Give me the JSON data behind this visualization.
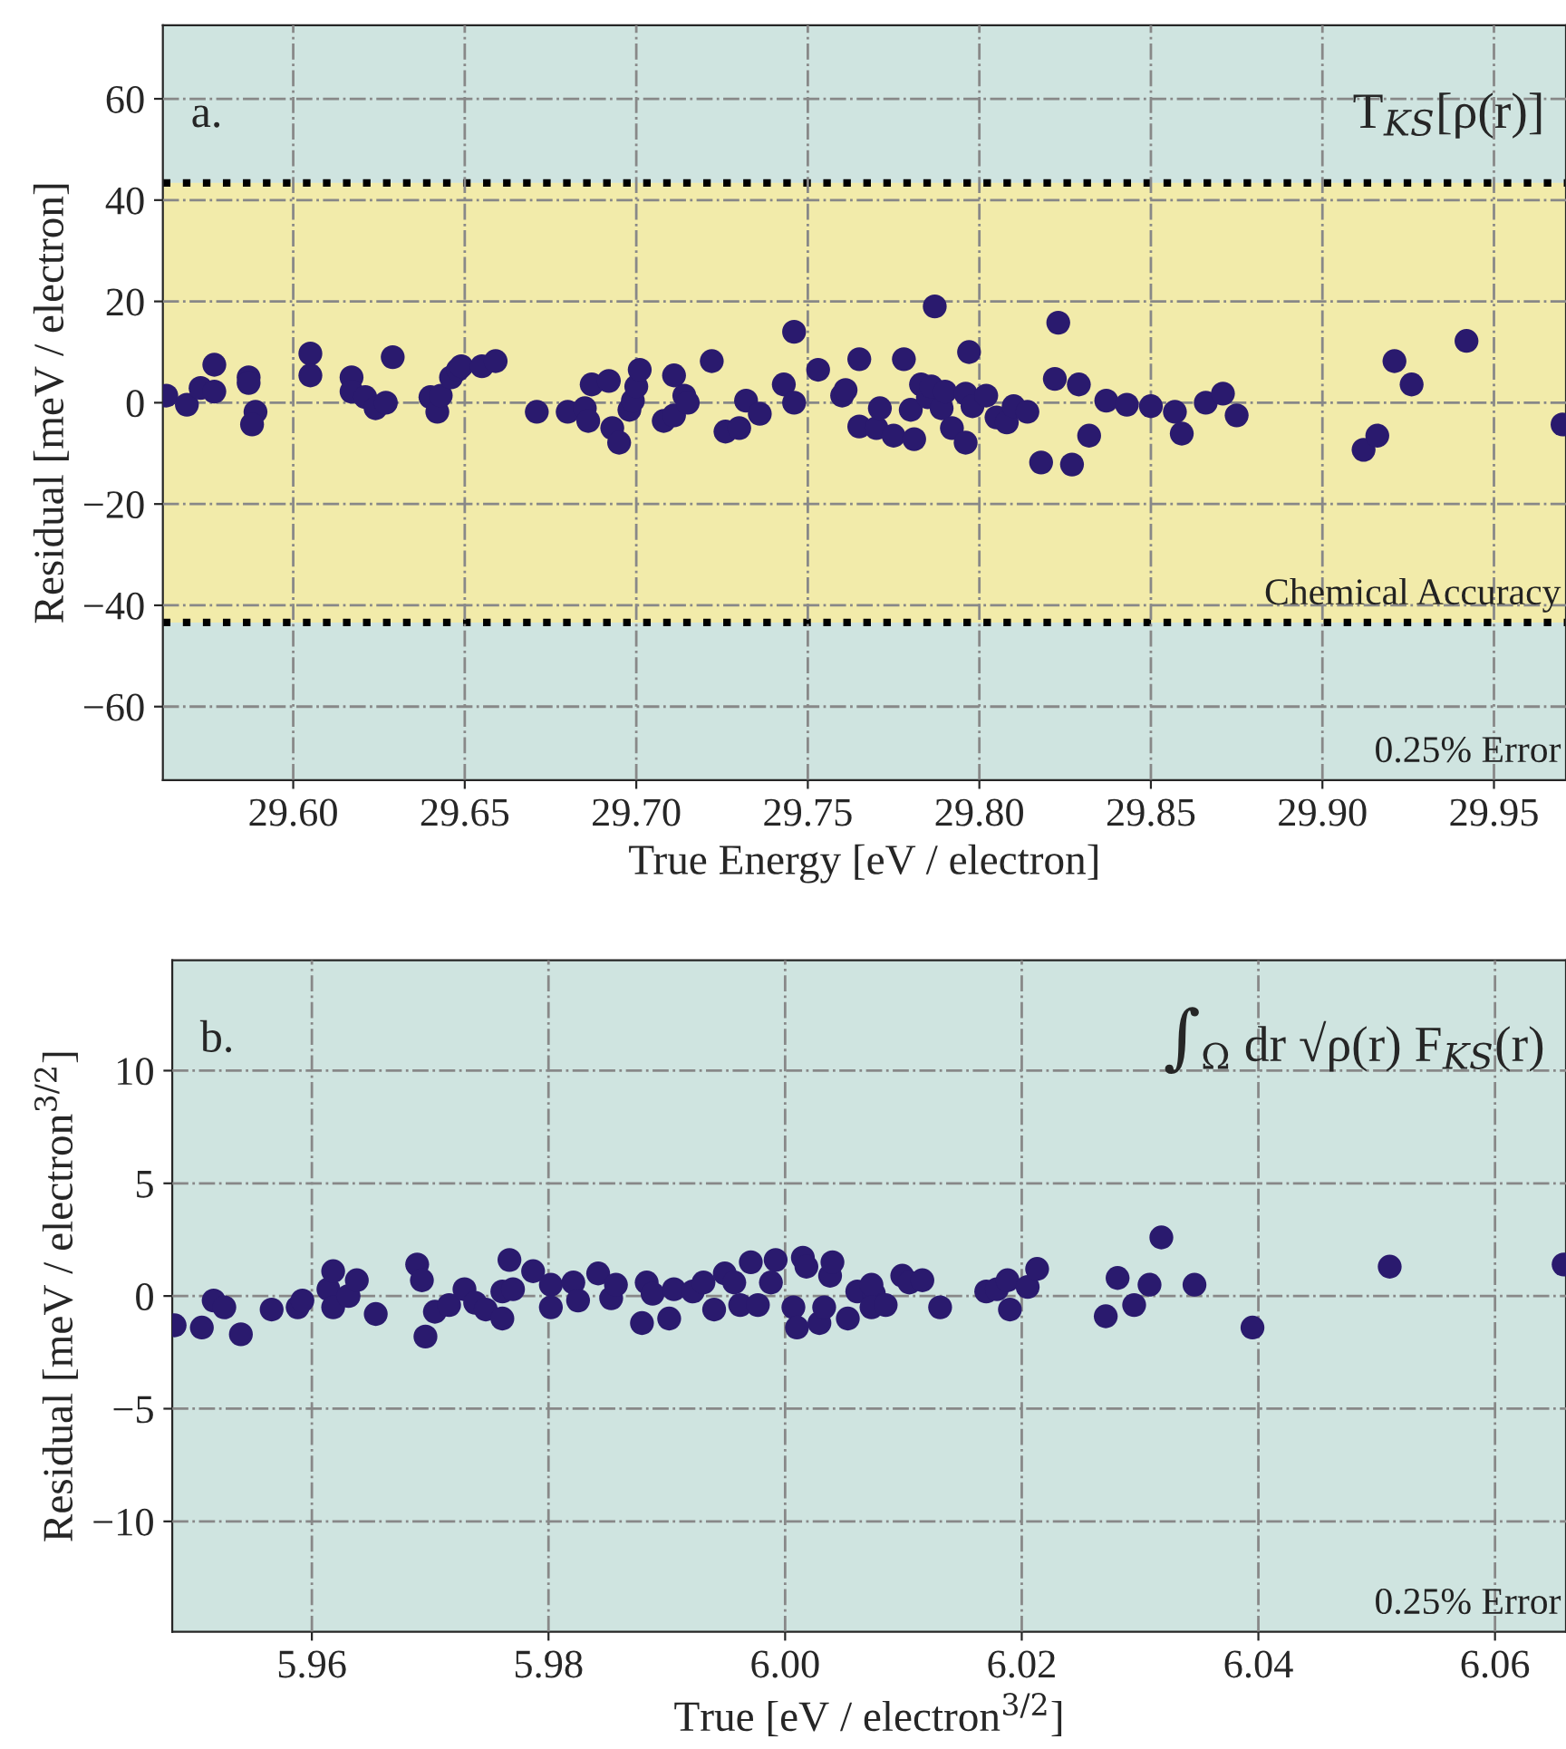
{
  "chart_data": [
    {
      "type": "scatter",
      "xlabel": "True Energy [eV / electron]",
      "ylabel": "Residual [meV / electron]",
      "annotations": [
        "a.",
        "T$_{KS}$[ρ(r)]"
      ],
      "xlim": [
        29.562,
        29.971
      ],
      "ylim": [
        -74.5,
        74.5
      ],
      "xticks": [
        {
          "value": 29.6,
          "label": "29.60"
        },
        {
          "value": 29.65,
          "label": "29.65"
        },
        {
          "value": 29.7,
          "label": "29.70"
        },
        {
          "value": 29.75,
          "label": "29.75"
        },
        {
          "value": 29.8,
          "label": "29.80"
        },
        {
          "value": 29.85,
          "label": "29.85"
        },
        {
          "value": 29.9,
          "label": "29.90"
        },
        {
          "value": 29.95,
          "label": "29.95"
        }
      ],
      "yticks": [
        {
          "value": -60,
          "label": "−60"
        },
        {
          "value": -40,
          "label": "−40"
        },
        {
          "value": -20,
          "label": "−20"
        },
        0,
        20,
        40,
        60
      ],
      "grid": true,
      "marker": "circle",
      "bands": [
        {
          "axis": "y",
          "from": -74.5,
          "to": 74.5,
          "label": "0.25% Error",
          "color": "#cfe4e0"
        },
        {
          "axis": "y",
          "from": -43.4,
          "to": 43.4,
          "label": "Chemical Accuracy",
          "color": "#f2ebaa"
        }
      ],
      "ref_lines": [
        {
          "axis": "y",
          "value": 43.4,
          "color": "#000000",
          "line_style": "dotted"
        },
        {
          "axis": "y",
          "value": -43.4,
          "color": "#000000",
          "line_style": "dotted"
        }
      ],
      "series": [
        {
          "color": "#2a1a6e",
          "x": [
            29.563,
            29.569,
            29.573,
            29.577,
            29.577,
            29.587,
            29.587,
            29.589,
            29.588,
            29.605,
            29.605,
            29.617,
            29.617,
            29.621,
            29.624,
            29.627,
            29.629,
            29.64,
            29.642,
            29.643,
            29.646,
            29.648,
            29.649,
            29.655,
            29.659,
            29.671,
            29.68,
            29.685,
            29.686,
            29.687,
            29.692,
            29.693,
            29.695,
            29.698,
            29.699,
            29.7,
            29.701,
            29.708,
            29.711,
            29.711,
            29.714,
            29.715,
            29.722,
            29.726,
            29.73,
            29.732,
            29.736,
            29.743,
            29.746,
            29.746,
            29.753,
            29.76,
            29.761,
            29.765,
            29.765,
            29.77,
            29.771,
            29.775,
            29.778,
            29.78,
            29.781,
            29.783,
            29.785,
            29.786,
            29.787,
            29.789,
            29.79,
            29.792,
            29.796,
            29.796,
            29.797,
            29.798,
            29.802,
            29.805,
            29.808,
            29.81,
            29.814,
            29.818,
            29.822,
            29.823,
            29.827,
            29.829,
            29.832,
            29.837,
            29.843,
            29.85,
            29.857,
            29.859,
            29.866,
            29.871,
            29.875,
            29.912,
            29.916,
            29.921,
            29.926,
            29.942,
            29.97
          ],
          "values": [
            1.4,
            -0.4,
            2.9,
            2.2,
            7.5,
            5.0,
            3.9,
            -1.8,
            -4.3,
            9.7,
            5.4,
            5.0,
            2.2,
            1.1,
            -1.1,
            0,
            9.0,
            1.1,
            -1.8,
            1.4,
            5.0,
            6.5,
            7.2,
            7.2,
            8.2,
            -1.8,
            -1.8,
            -1.1,
            -3.6,
            3.6,
            4.3,
            -5.0,
            -7.9,
            -1.4,
            0.4,
            3.2,
            6.5,
            -3.6,
            -2.5,
            5.4,
            1.4,
            0,
            8.2,
            -5.7,
            -5.0,
            0.4,
            -2.2,
            3.6,
            14.0,
            0,
            6.5,
            1.4,
            2.5,
            8.6,
            -4.7,
            -5.0,
            -1.1,
            -6.5,
            8.6,
            -1.4,
            -7.2,
            3.6,
            1.1,
            3.2,
            19.0,
            -1.1,
            2.2,
            -5.0,
            -7.9,
            1.8,
            10.0,
            -0.7,
            1.4,
            -2.9,
            -3.9,
            -0.7,
            -1.8,
            -11.8,
            4.7,
            15.8,
            -12.2,
            3.6,
            -6.5,
            0.4,
            -0.4,
            -0.7,
            -1.8,
            -6.1,
            0,
            1.8,
            -2.5,
            -9.3,
            -6.5,
            8.2,
            3.6,
            12.2,
            -4.3
          ]
        }
      ]
    },
    {
      "type": "scatter",
      "xlabel": "True [eV / electron$^{3/2}$]",
      "ylabel": "Residual [meV / electron$^{3/2}$]",
      "annotations": [
        "b.",
        "∫$_{Ω}$ dr √ρ(r) F$_{KS}$(r)"
      ],
      "xlim": [
        5.9482,
        6.066
      ],
      "ylim": [
        -14.9,
        14.9
      ],
      "xticks": [
        {
          "value": 5.96,
          "label": "5.96"
        },
        {
          "value": 5.98,
          "label": "5.98"
        },
        {
          "value": 6.0,
          "label": "6.00"
        },
        {
          "value": 6.02,
          "label": "6.02"
        },
        {
          "value": 6.04,
          "label": "6.04"
        },
        {
          "value": 6.06,
          "label": "6.06"
        }
      ],
      "yticks": [
        {
          "value": -10,
          "label": "−10"
        },
        {
          "value": -5,
          "label": "−5"
        },
        0,
        5,
        10
      ],
      "grid": true,
      "marker": "circle",
      "bands": [
        {
          "axis": "y",
          "from": -14.9,
          "to": 14.9,
          "label": "0.25% Error",
          "color": "#cfe4e0"
        }
      ],
      "series": [
        {
          "color": "#2a1a6e",
          "x": [
            5.9484,
            5.9507,
            5.9517,
            5.9526,
            5.954,
            5.9566,
            5.9588,
            5.9592,
            5.9614,
            5.9618,
            5.9618,
            5.9631,
            5.9638,
            5.9654,
            5.9689,
            5.9693,
            5.9696,
            5.9704,
            5.9716,
            5.9729,
            5.9738,
            5.9747,
            5.9761,
            5.9761,
            5.9767,
            5.977,
            5.9787,
            5.9802,
            5.9802,
            5.9821,
            5.9825,
            5.9842,
            5.9853,
            5.9857,
            5.9879,
            5.9883,
            5.9888,
            5.9902,
            5.9906,
            5.9922,
            5.9931,
            5.994,
            5.9949,
            5.9957,
            5.9962,
            5.9971,
            5.9977,
            5.9988,
            5.9992,
            6.0007,
            6.001,
            6.0015,
            6.0018,
            6.0029,
            6.0038,
            6.004,
            6.0033,
            6.0053,
            6.0061,
            6.0075,
            6.0073,
            6.0073,
            6.0085,
            6.0099,
            6.0105,
            6.0116,
            6.0131,
            6.017,
            6.0179,
            6.0188,
            6.019,
            6.0205,
            6.0213,
            6.0271,
            6.0281,
            6.0295,
            6.0308,
            6.0318,
            6.0346,
            6.0395,
            6.0511,
            6.0658
          ],
          "values": [
            -1.3,
            -1.4,
            -0.2,
            -0.5,
            -1.7,
            -0.6,
            -0.5,
            -0.2,
            0.3,
            1.1,
            -0.5,
            0,
            0.7,
            -0.8,
            1.4,
            0.7,
            -1.8,
            -0.7,
            -0.4,
            0.3,
            -0.3,
            -0.6,
            -1.0,
            0.2,
            1.6,
            0.3,
            1.1,
            0.5,
            -0.5,
            0.6,
            -0.2,
            1.0,
            -0.1,
            0.5,
            -1.2,
            0.6,
            0.1,
            -1.0,
            0.3,
            0.2,
            0.6,
            -0.6,
            1.0,
            0.6,
            -0.4,
            1.5,
            -0.4,
            0.6,
            1.6,
            -0.5,
            -1.4,
            1.7,
            1.3,
            -1.2,
            0.9,
            1.5,
            -0.5,
            -1.0,
            0.2,
            0.1,
            0.5,
            -0.5,
            -0.4,
            0.9,
            0.6,
            0.7,
            -0.5,
            0.2,
            0.3,
            0.7,
            -0.6,
            0.4,
            1.2,
            -0.9,
            0.8,
            -0.4,
            0.5,
            2.6,
            0.5,
            -1.4,
            1.3,
            1.4
          ]
        }
      ]
    }
  ]
}
